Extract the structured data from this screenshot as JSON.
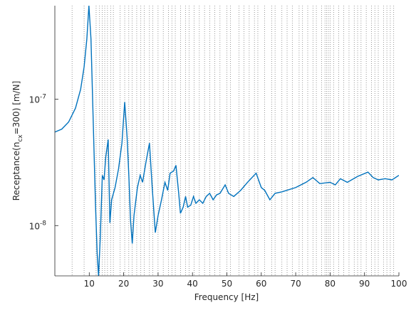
{
  "chart_data": {
    "type": "line",
    "xlabel": "Frequency [Hz]",
    "ylabel_parts": [
      "Receptance(n",
      "cx",
      "=300) [m/N]"
    ],
    "xlim": [
      0,
      100
    ],
    "xticks": [
      10,
      20,
      30,
      40,
      50,
      60,
      70,
      80,
      90,
      100
    ],
    "ylim": [
      4e-09,
      5.5e-07
    ],
    "yscale": "log",
    "yticks": [
      {
        "value": 1e-08,
        "label": "10",
        "exponent": "-8"
      },
      {
        "value": 1e-07,
        "label": "10",
        "exponent": "-7"
      }
    ],
    "vlines": [
      5,
      8.5,
      12,
      13,
      13.8,
      14.5,
      15.3,
      16.2,
      17,
      19,
      20.3,
      21.5,
      22.5,
      23.8,
      25,
      26,
      27.5,
      28.5,
      30,
      31.5,
      33,
      34,
      35,
      36.5,
      38,
      39,
      40.5,
      42,
      43.5,
      45,
      46.5,
      48,
      50,
      51,
      53.5,
      55,
      56.5,
      58,
      59,
      61,
      63,
      64,
      66,
      67.5,
      69,
      71,
      72,
      73.5,
      75,
      76,
      77.5,
      78.5,
      79,
      79.5,
      80,
      81,
      82.5,
      84,
      85.5,
      87,
      88,
      89,
      90.5,
      92,
      93,
      94,
      95.5,
      96.5,
      97.5,
      98.5
    ],
    "vline_color": "#555555",
    "x": [
      0,
      2,
      4,
      6,
      7.5,
      8.5,
      9.3,
      9.9,
      10.5,
      11.2,
      11.8,
      12.3,
      12.7,
      13.2,
      13.8,
      14.3,
      14.8,
      15.5,
      16,
      16.5,
      17.5,
      18.5,
      19.5,
      20.3,
      21,
      21.5,
      22,
      22.5,
      23,
      24,
      24.8,
      25.5,
      26.5,
      27.5,
      28.3,
      29.2,
      30,
      31,
      32,
      32.8,
      33.5,
      34.5,
      35.2,
      36,
      36.5,
      37.3,
      38,
      38.6,
      39.5,
      40.3,
      41,
      42,
      43,
      44,
      45,
      46,
      47,
      48,
      49.5,
      50.5,
      52,
      54,
      56,
      58.5,
      60,
      61,
      62.5,
      64,
      66,
      70,
      73,
      75,
      77,
      80,
      81.5,
      83,
      85,
      88,
      91,
      92.5,
      94,
      96,
      98,
      100
    ],
    "series": [
      {
        "color": "#0072bd",
        "values": [
          5.5e-08,
          5.8e-08,
          6.6e-08,
          8.5e-08,
          1.2e-07,
          1.8e-07,
          3e-07,
          5.5e-07,
          3e-07,
          6e-08,
          1.5e-08,
          6e-09,
          4e-09,
          8e-09,
          2.5e-08,
          2.3e-08,
          3.5e-08,
          4.8e-08,
          1.05e-08,
          1.6e-08,
          2e-08,
          2.8e-08,
          4.5e-08,
          9.5e-08,
          5e-08,
          2.5e-08,
          1.1e-08,
          7.2e-09,
          1.2e-08,
          2e-08,
          2.5e-08,
          2.2e-08,
          3.2e-08,
          4.5e-08,
          2e-08,
          8.8e-09,
          1.2e-08,
          1.6e-08,
          2.2e-08,
          1.9e-08,
          2.6e-08,
          2.7e-08,
          3e-08,
          1.8e-08,
          1.25e-08,
          1.4e-08,
          1.7e-08,
          1.4e-08,
          1.45e-08,
          1.7e-08,
          1.5e-08,
          1.6e-08,
          1.5e-08,
          1.7e-08,
          1.8e-08,
          1.6e-08,
          1.75e-08,
          1.8e-08,
          2.1e-08,
          1.8e-08,
          1.7e-08,
          1.9e-08,
          2.2e-08,
          2.6e-08,
          2e-08,
          1.9e-08,
          1.6e-08,
          1.8e-08,
          1.85e-08,
          2e-08,
          2.2e-08,
          2.4e-08,
          2.15e-08,
          2.2e-08,
          2.1e-08,
          2.35e-08,
          2.2e-08,
          2.45e-08,
          2.65e-08,
          2.4e-08,
          2.3e-08,
          2.35e-08,
          2.3e-08,
          2.5e-08
        ]
      }
    ]
  }
}
